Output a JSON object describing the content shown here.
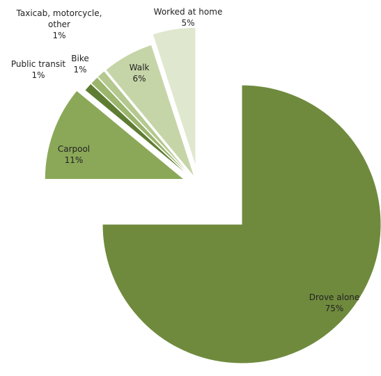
{
  "chart_data": {
    "type": "pie",
    "categories": [
      "Drove alone",
      "Carpool",
      "Public transit",
      "Bike",
      "Taxicab, motorcycle, other",
      "Walk",
      "Worked at home"
    ],
    "values": [
      75,
      11,
      1,
      1,
      1,
      6,
      5
    ],
    "value_labels": [
      "75%",
      "11%",
      "1%",
      "1%",
      "1%",
      "6%",
      "5%"
    ],
    "colors": [
      "#6f8a3d",
      "#8ba858",
      "#5f7d32",
      "#9cb56d",
      "#b4c88f",
      "#c6d5a8",
      "#dfe8cf"
    ]
  }
}
